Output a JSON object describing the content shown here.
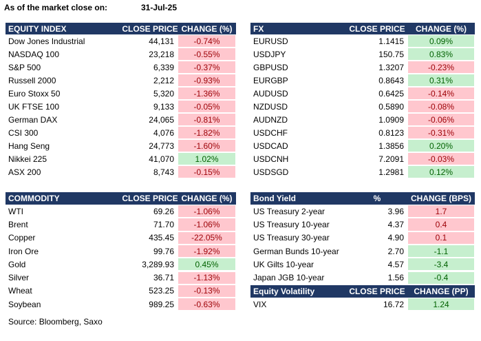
{
  "header": {
    "label": "As of the market close on:",
    "date": "31-Jul-25"
  },
  "tables": [
    {
      "columns": [
        "EQUITY INDEX",
        "CLOSE PRICE",
        "CHANGE (%)"
      ],
      "up_fill": "#c6efce",
      "up_text": "#006100",
      "down_fill": "#ffc7ce",
      "down_text": "#9c0006",
      "rows": [
        [
          "Dow Jones Industrial",
          "44,131",
          "-0.74%"
        ],
        [
          "NASDAQ 100",
          "23,218",
          "-0.55%"
        ],
        [
          "S&P 500",
          "6,339",
          "-0.37%"
        ],
        [
          "Russell 2000",
          "2,212",
          "-0.93%"
        ],
        [
          "Euro Stoxx 50",
          "5,320",
          "-1.36%"
        ],
        [
          "UK FTSE 100",
          "9,133",
          "-0.05%"
        ],
        [
          "German DAX",
          "24,065",
          "-0.81%"
        ],
        [
          "CSI 300",
          "4,076",
          "-1.82%"
        ],
        [
          "Hang Seng",
          "24,773",
          "-1.60%"
        ],
        [
          "Nikkei 225",
          "41,070",
          "1.02%"
        ],
        [
          "ASX 200",
          "8,743",
          "-0.15%"
        ]
      ]
    },
    {
      "columns": [
        "FX",
        "CLOSE PRICE",
        "CHANGE (%)"
      ],
      "up_fill": "#c6efce",
      "up_text": "#006100",
      "down_fill": "#ffc7ce",
      "down_text": "#9c0006",
      "rows": [
        [
          "EURUSD",
          "1.1415",
          "0.09%"
        ],
        [
          "USDJPY",
          "150.75",
          "0.83%"
        ],
        [
          "GBPUSD",
          "1.3207",
          "-0.23%"
        ],
        [
          "EURGBP",
          "0.8643",
          "0.31%"
        ],
        [
          "AUDUSD",
          "0.6425",
          "-0.14%"
        ],
        [
          "NZDUSD",
          "0.5890",
          "-0.08%"
        ],
        [
          "AUDNZD",
          "1.0909",
          "-0.06%"
        ],
        [
          "USDCHF",
          "0.8123",
          "-0.31%"
        ],
        [
          "USDCAD",
          "1.3856",
          "0.20%"
        ],
        [
          "USDCNH",
          "7.2091",
          "-0.03%"
        ],
        [
          "USDSGD",
          "1.2981",
          "0.12%"
        ]
      ]
    },
    {
      "columns": [
        "COMMODITY",
        "CLOSE PRICE",
        "CHANGE (%)"
      ],
      "up_fill": "#c6efce",
      "up_text": "#006100",
      "down_fill": "#ffc7ce",
      "down_text": "#9c0006",
      "rows": [
        [
          "WTI",
          "69.26",
          "-1.06%"
        ],
        [
          "Brent",
          "71.70",
          "-1.06%"
        ],
        [
          "Copper",
          "435.45",
          "-22.05%"
        ],
        [
          "Iron Ore",
          "99.76",
          "-1.92%"
        ],
        [
          "Gold",
          "3,289.93",
          "0.45%"
        ],
        [
          "Silver",
          "36.71",
          "-1.13%"
        ],
        [
          "Wheat",
          "523.25",
          "-0.13%"
        ],
        [
          "Soybean",
          "989.25",
          "-0.63%"
        ]
      ]
    },
    {
      "columns": [
        "Bond Yield",
        "%",
        "CHANGE (BPS)"
      ],
      "up_fill": "#ffc7ce",
      "up_text": "#9c0006",
      "down_fill": "#c6efce",
      "down_text": "#006100",
      "rows": [
        [
          "US Treasury 2-year",
          "3.96",
          "1.7"
        ],
        [
          "US Treasury 10-year",
          "4.37",
          "0.4"
        ],
        [
          "US Treasury 30-year",
          "4.90",
          "0.1"
        ],
        [
          "German Bunds 10-year",
          "2.70",
          "-1.1"
        ],
        [
          "UK Gilts 10-year",
          "4.57",
          "-3.4"
        ],
        [
          "Japan JGB 10-year",
          "1.56",
          "-0.4"
        ]
      ]
    },
    {
      "columns": [
        "Equity Volatility",
        "CLOSE PRICE",
        "CHANGE (PP)"
      ],
      "up_fill": "#c6efce",
      "up_text": "#006100",
      "down_fill": "#ffc7ce",
      "down_text": "#9c0006",
      "rows": [
        [
          "VIX",
          "16.72",
          "1.24"
        ]
      ]
    }
  ],
  "footer": "Source: Bloomberg, Saxo"
}
